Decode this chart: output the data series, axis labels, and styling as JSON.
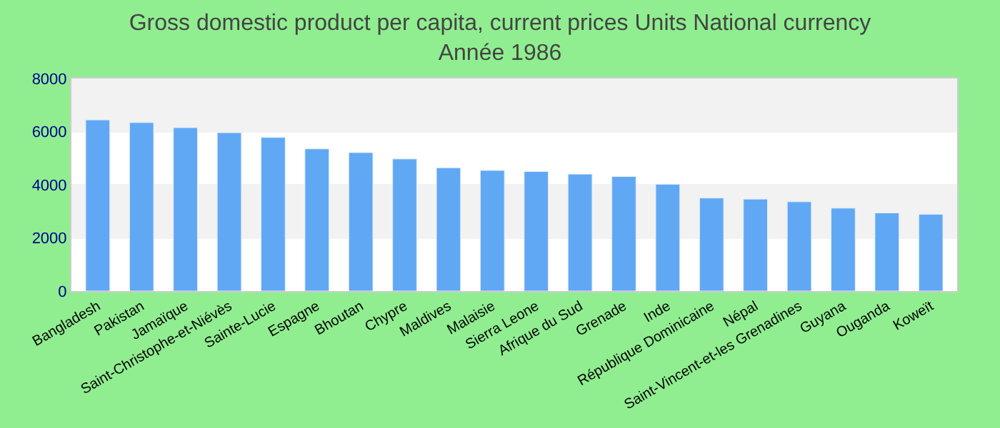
{
  "chart_data": {
    "type": "bar",
    "title": "Gross domestic product per capita, current prices Units National currency",
    "subtitle": "Année 1986",
    "categories": [
      "Bangladesh",
      "Pakistan",
      "Jamaïque",
      "Saint-Christophe-et-Niévès",
      "Sainte-Lucie",
      "Espagne",
      "Bhoutan",
      "Chypre",
      "Maldives",
      "Malaisie",
      "Sierra Leone",
      "Afrique du Sud",
      "Grenade",
      "Inde",
      "République Dominicaine",
      "Népal",
      "Saint-Vincent-et-les Grenadines",
      "Guyana",
      "Ouganda",
      "Koweït"
    ],
    "values": [
      6440,
      6340,
      6150,
      5960,
      5780,
      5350,
      5210,
      4970,
      4640,
      4540,
      4500,
      4400,
      4310,
      4020,
      3500,
      3460,
      3360,
      3120,
      2940,
      2890
    ],
    "color": "#60a8f4",
    "ylim": [
      0,
      8000
    ],
    "yticks": [
      0,
      2000,
      4000,
      6000,
      8000
    ],
    "grid": "y"
  }
}
